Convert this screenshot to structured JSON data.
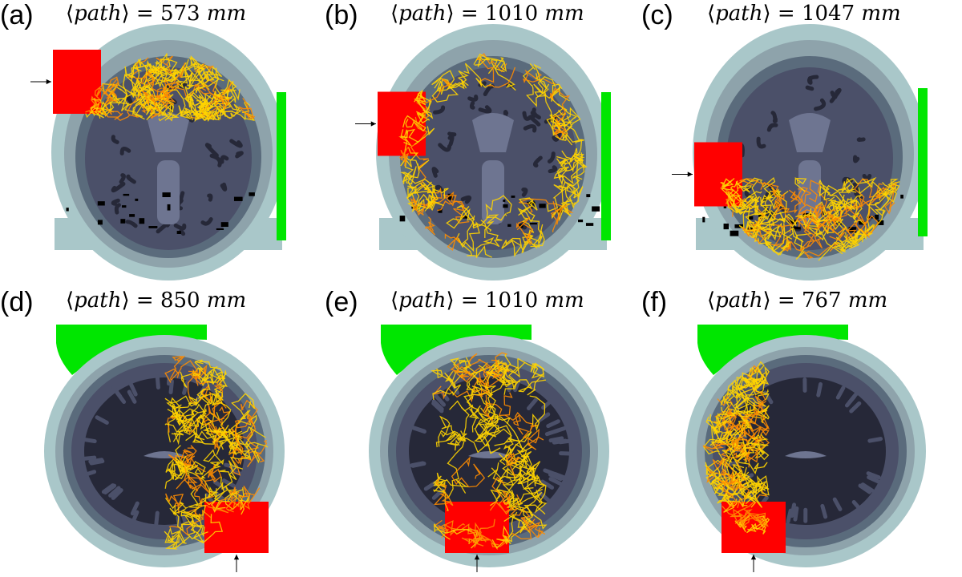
{
  "panels": [
    {
      "letter": "(a)",
      "var": "path",
      "value": "573",
      "unit": "mm",
      "view": "coronal",
      "source_side": "left",
      "source_level": 0.2,
      "detector_side": "right",
      "detector_level": 0.35,
      "spread": "top"
    },
    {
      "letter": "(b)",
      "var": "path",
      "value": "1010",
      "unit": "mm",
      "view": "coronal",
      "source_side": "left",
      "source_level": 0.45,
      "detector_side": "right",
      "detector_level": 0.35,
      "spread": "ring"
    },
    {
      "letter": "(c)",
      "var": "path",
      "value": "1047",
      "unit": "mm",
      "view": "coronal",
      "source_side": "left",
      "source_level": 0.75,
      "detector_side": "right",
      "detector_level": 0.3,
      "spread": "bottom"
    },
    {
      "letter": "(d)",
      "var": "path",
      "value": "850",
      "unit": "mm",
      "view": "axial",
      "source_side": "bottom-right",
      "detector_side": "top-left",
      "spread": "right"
    },
    {
      "letter": "(e)",
      "var": "path",
      "value": "1010",
      "unit": "mm",
      "view": "axial",
      "source_side": "bottom-center",
      "detector_side": "top-left",
      "spread": "center"
    },
    {
      "letter": "(f)",
      "var": "path",
      "value": "767",
      "unit": "mm",
      "view": "axial",
      "source_side": "bottom-left",
      "detector_side": "top-left",
      "spread": "left"
    }
  ],
  "colors": {
    "source": "#ff0000",
    "detector": "#00e600",
    "scalp": "#a9c7c9",
    "skull": "#8ea3ab",
    "csf": "#5a6b7c",
    "gray_matter": "#4b5069",
    "white_matter": "#262838",
    "ventricle": "#6e7591",
    "path_yellow": "#ffd400",
    "path_orange": "#ff8c00"
  }
}
